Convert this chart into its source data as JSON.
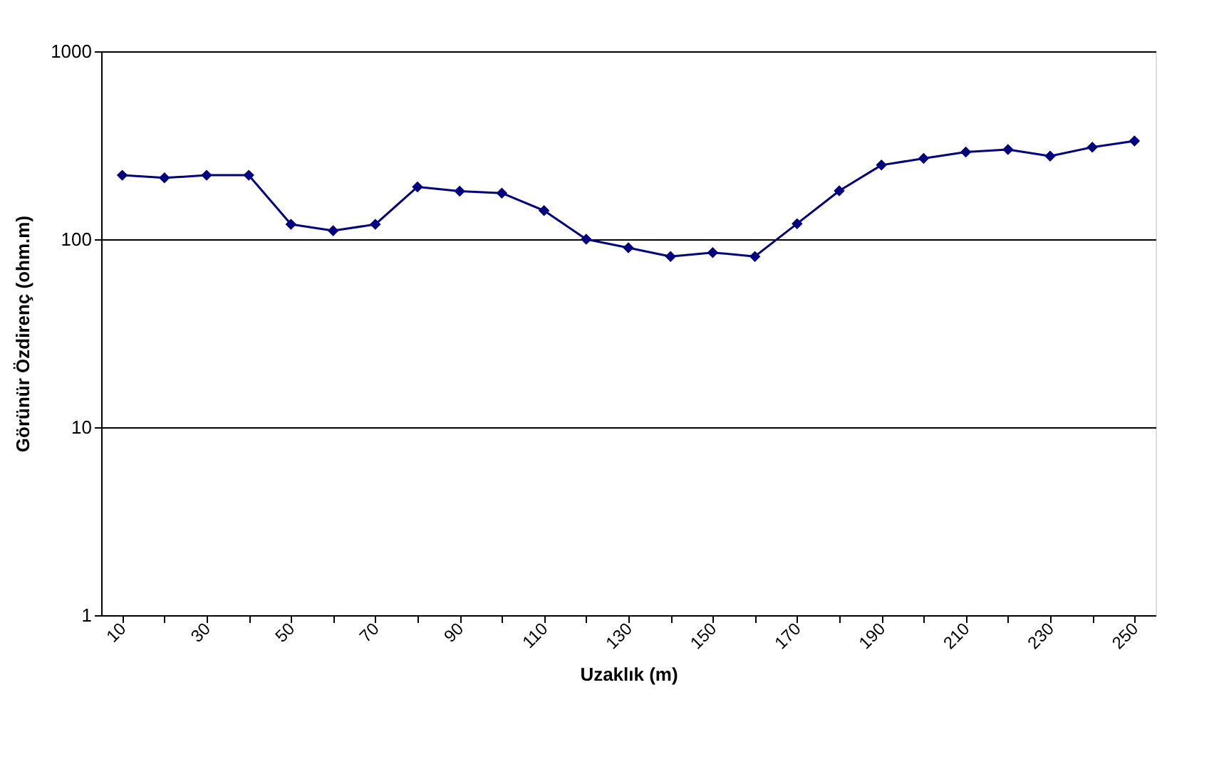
{
  "chart_data": {
    "type": "line",
    "xlabel": "Uzaklık (m)",
    "ylabel": "Görünür Özdirenç (ohm.m)",
    "categories": [
      "10",
      null,
      "30",
      null,
      "50",
      null,
      "70",
      null,
      "90",
      null,
      "110",
      null,
      "130",
      null,
      "150",
      null,
      "170",
      null,
      "190",
      null,
      "210",
      null,
      "230",
      null,
      "250"
    ],
    "series": [
      {
        "color": "#000080",
        "values": [
          219,
          212,
          219,
          219,
          120,
          111,
          120,
          190,
          180,
          176,
          142,
          100,
          90,
          81,
          85,
          81,
          121,
          181,
          248,
          269,
          291,
          300,
          277,
          309,
          333
        ]
      }
    ],
    "log": true,
    "ylim": [
      1,
      1000
    ],
    "yticks": [
      1,
      10,
      100,
      1000
    ],
    "grid": "y",
    "marker": "diamond",
    "line_style": "solid",
    "legend": false
  }
}
